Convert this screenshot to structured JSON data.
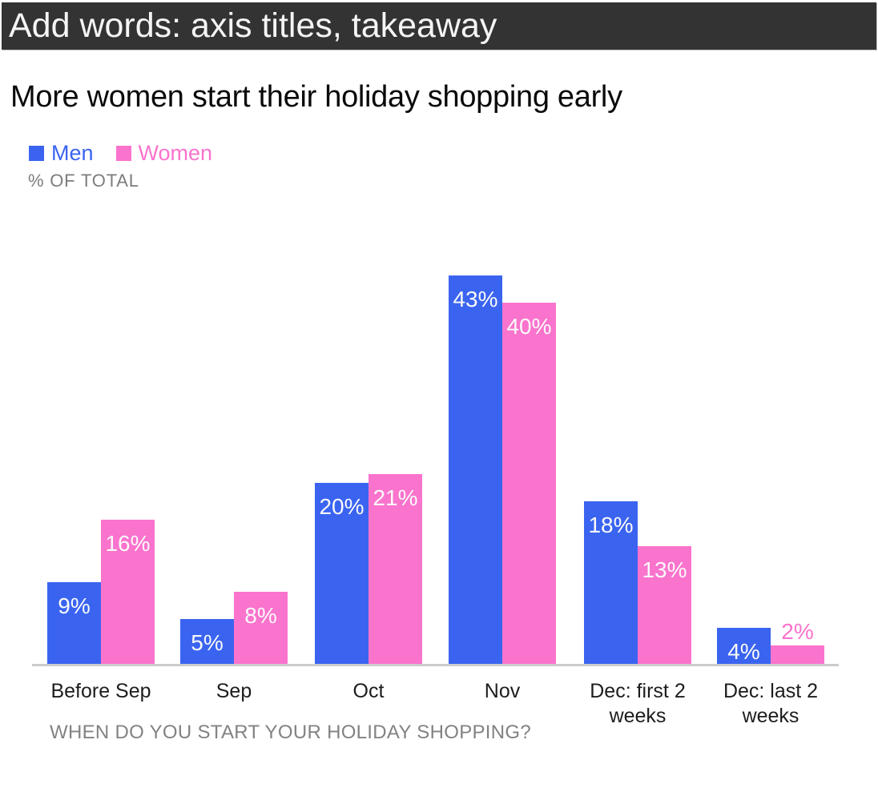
{
  "header": {
    "label": "Add words: axis titles, takeaway",
    "bg_color": "#333333",
    "text_color": "#f5f5f5"
  },
  "title": "More women start their holiday shopping early",
  "subtitle": "% OF TOTAL",
  "axis_title": "WHEN DO YOU START YOUR HOLIDAY SHOPPING?",
  "colors": {
    "men_blue": "#3A64F0",
    "women_pink": "#FA73CD",
    "axis_line": "#cccccc",
    "muted_text": "#7d7d7d",
    "category_text": "#1d1d1d",
    "bar_value_text": "#fafafa"
  },
  "chart_data": {
    "type": "bar",
    "title": "More women start their holiday shopping early",
    "xlabel": "WHEN DO YOU START YOUR HOLIDAY SHOPPING?",
    "ylabel": "% OF TOTAL",
    "categories": [
      "Before Sep",
      "Sep",
      "Oct",
      "Nov",
      "Dec: first 2 weeks",
      "Dec: last 2 weeks"
    ],
    "series": [
      {
        "name": "Men",
        "color": "#3A64F0",
        "values": [
          9,
          5,
          20,
          43,
          18,
          4
        ]
      },
      {
        "name": "Women",
        "color": "#FA73CD",
        "values": [
          16,
          8,
          21,
          40,
          13,
          2
        ]
      }
    ],
    "value_suffix": "%",
    "value_labels": true,
    "ylim": [
      0,
      45
    ],
    "grid": false,
    "legend_position": "top-left"
  }
}
